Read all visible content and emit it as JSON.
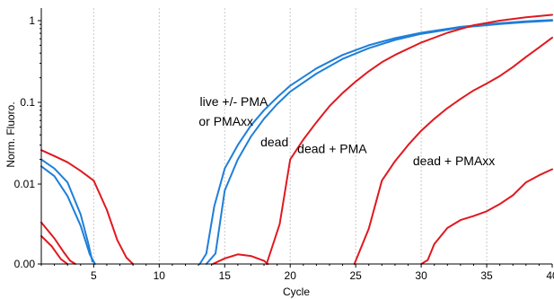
{
  "chart_data": {
    "type": "line",
    "xlabel": "Cycle",
    "ylabel": "Norm. Fluoro.",
    "yscale": "log (with 0.00 baseline)",
    "xlim": [
      1,
      40
    ],
    "ylim": [
      0,
      1.4
    ],
    "grid": "vertical only",
    "x_ticks": [
      5,
      10,
      15,
      20,
      25,
      30,
      35,
      40
    ],
    "x_tick_labels": [
      "5",
      "10",
      "15",
      "20",
      "25",
      "30",
      "35",
      "40"
    ],
    "y_ticks": [
      0,
      0.01,
      0.1,
      1
    ],
    "y_tick_labels": [
      "0.00",
      "0.01",
      "0.1",
      "1"
    ],
    "colors": {
      "live": "#1f7fd8",
      "dead": "#e0191f"
    },
    "annotations": [
      {
        "text": "live +/- PMA",
        "x": 15.7,
        "y": 0.09
      },
      {
        "text": "or PMAxx",
        "x": 15.1,
        "y": 0.052
      },
      {
        "text": "dead",
        "x": 18.8,
        "y": 0.029
      },
      {
        "text": "dead + PMA",
        "x": 23.2,
        "y": 0.024
      },
      {
        "text": "dead + PMAxx",
        "x": 32.5,
        "y": 0.017
      }
    ],
    "series": [
      {
        "group": "live",
        "color": "#1f7fd8",
        "points": [
          [
            1,
            0.02
          ],
          [
            2,
            0.0155
          ],
          [
            3,
            0.0105
          ],
          [
            4,
            0.0062
          ],
          [
            4.6,
            0.0025
          ],
          [
            4.9,
            0.0003
          ]
        ]
      },
      {
        "group": "live",
        "color": "#1f7fd8",
        "points": [
          [
            1,
            0.0165
          ],
          [
            2,
            0.0125
          ],
          [
            3,
            0.0085
          ],
          [
            4,
            0.0048
          ],
          [
            4.7,
            0.0012
          ],
          [
            5.1,
            0
          ]
        ]
      },
      {
        "group": "live",
        "color": "#1f7fd8",
        "points": [
          [
            13.1,
            0
          ],
          [
            13.6,
            0.0013
          ],
          [
            14.2,
            0.0072
          ],
          [
            15,
            0.0155
          ],
          [
            16,
            0.03
          ],
          [
            17,
            0.052
          ],
          [
            18,
            0.08
          ],
          [
            19,
            0.115
          ],
          [
            20,
            0.16
          ],
          [
            22,
            0.26
          ],
          [
            24,
            0.38
          ],
          [
            26,
            0.5
          ],
          [
            28,
            0.61
          ],
          [
            30,
            0.71
          ],
          [
            33,
            0.84
          ],
          [
            36,
            0.93
          ],
          [
            38,
            0.98
          ],
          [
            40,
            1.02
          ]
        ]
      },
      {
        "group": "live",
        "color": "#1f7fd8",
        "points": [
          [
            13.6,
            0
          ],
          [
            14.3,
            0.0013
          ],
          [
            15,
            0.0092
          ],
          [
            16,
            0.02
          ],
          [
            17,
            0.038
          ],
          [
            18,
            0.063
          ],
          [
            19,
            0.095
          ],
          [
            20,
            0.135
          ],
          [
            22,
            0.225
          ],
          [
            24,
            0.34
          ],
          [
            26,
            0.46
          ],
          [
            28,
            0.58
          ],
          [
            30,
            0.69
          ],
          [
            33,
            0.82
          ],
          [
            36,
            0.91
          ],
          [
            38,
            0.96
          ],
          [
            40,
            1.0
          ]
        ]
      },
      {
        "group": "dead",
        "color": "#e0191f",
        "points": [
          [
            1,
            0.026
          ],
          [
            2,
            0.022
          ],
          [
            3,
            0.0185
          ],
          [
            4,
            0.0145
          ],
          [
            5,
            0.011
          ],
          [
            6,
            0.0068
          ],
          [
            6.8,
            0.003
          ],
          [
            7.5,
            0.0008
          ],
          [
            8,
            0
          ]
        ]
      },
      {
        "group": "dead",
        "color": "#e0191f",
        "points": [
          [
            1,
            0.0052
          ],
          [
            2,
            0.0032
          ],
          [
            2.7,
            0.0015
          ],
          [
            3.2,
            0.0004
          ],
          [
            3.6,
            0
          ]
        ]
      },
      {
        "group": "dead",
        "color": "#e0191f",
        "points": [
          [
            1,
            0.0035
          ],
          [
            1.8,
            0.0022
          ],
          [
            2.5,
            0.0006
          ],
          [
            3,
            0
          ]
        ]
      },
      {
        "group": "dead",
        "color": "#e0191f",
        "points": [
          [
            14.1,
            0
          ],
          [
            15,
            0.0007
          ],
          [
            16,
            0.0012
          ],
          [
            17,
            0.001
          ],
          [
            18,
            0.0004
          ],
          [
            18.3,
            0
          ]
        ]
      },
      {
        "group": "dead",
        "color": "#e0191f",
        "points": [
          [
            18.2,
            0
          ],
          [
            19.2,
            0.005
          ],
          [
            20,
            0.02
          ],
          [
            21,
            0.035
          ],
          [
            22,
            0.057
          ],
          [
            23,
            0.09
          ],
          [
            24,
            0.13
          ],
          [
            25,
            0.18
          ],
          [
            26,
            0.24
          ],
          [
            27,
            0.31
          ],
          [
            28,
            0.38
          ],
          [
            30,
            0.54
          ],
          [
            32,
            0.71
          ],
          [
            34,
            0.88
          ],
          [
            36,
            1.0
          ],
          [
            38,
            1.1
          ],
          [
            40,
            1.18
          ]
        ]
      },
      {
        "group": "dead",
        "color": "#e0191f",
        "points": [
          [
            24.9,
            0
          ],
          [
            26,
            0.0044
          ],
          [
            27,
            0.011
          ],
          [
            28,
            0.019
          ],
          [
            29,
            0.03
          ],
          [
            30,
            0.045
          ],
          [
            31,
            0.063
          ],
          [
            32,
            0.085
          ],
          [
            33,
            0.11
          ],
          [
            34,
            0.14
          ],
          [
            35,
            0.17
          ],
          [
            36,
            0.21
          ],
          [
            37,
            0.27
          ],
          [
            38,
            0.36
          ],
          [
            39,
            0.47
          ],
          [
            40,
            0.62
          ]
        ]
      },
      {
        "group": "dead",
        "color": "#e0191f",
        "points": [
          [
            30,
            0
          ],
          [
            30.5,
            0.0005
          ],
          [
            31,
            0.0025
          ],
          [
            32,
            0.0045
          ],
          [
            33,
            0.0055
          ],
          [
            34,
            0.006
          ],
          [
            35,
            0.0066
          ],
          [
            36,
            0.0075
          ],
          [
            37,
            0.0086
          ],
          [
            38,
            0.0105
          ],
          [
            39,
            0.0128
          ],
          [
            40,
            0.0152
          ]
        ]
      }
    ]
  }
}
